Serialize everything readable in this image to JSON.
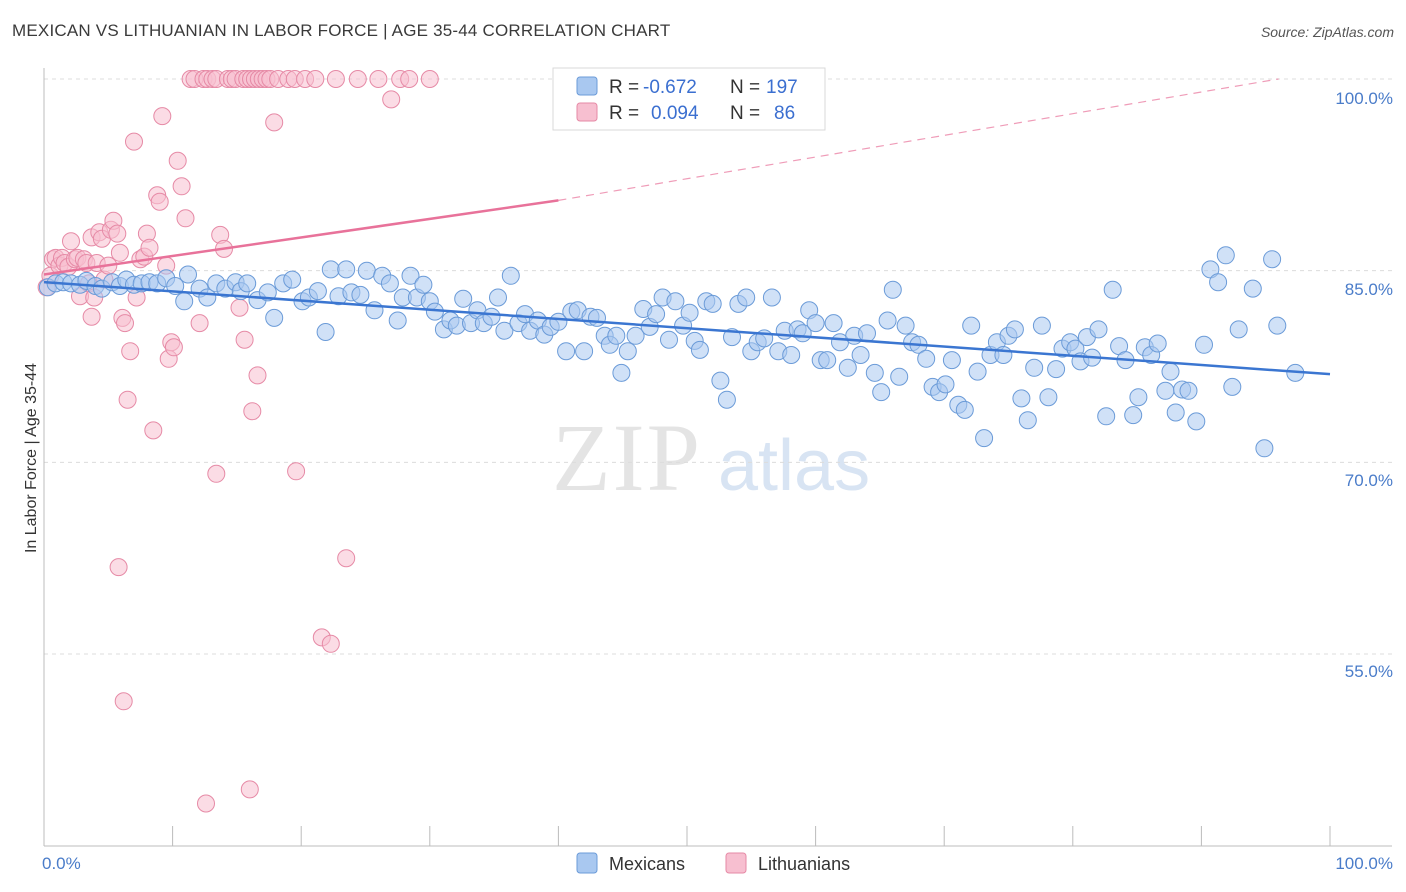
{
  "title": "MEXICAN VS LITHUANIAN IN LABOR FORCE | AGE 35-44 CORRELATION CHART",
  "source": "Source: ZipAtlas.com",
  "watermark": {
    "zip": "ZIP",
    "atlas": "atlas"
  },
  "legend": {
    "r_label": "R =",
    "n_label": "N =",
    "rows": [
      {
        "r": "-0.672",
        "n": "197",
        "color": "#a9c8f0",
        "stroke": "#6b9bd8"
      },
      {
        "r": "0.094",
        "n": "86",
        "color": "#f7bfd0",
        "stroke": "#e68aa6"
      }
    ]
  },
  "bottom_legend": [
    {
      "label": "Mexicans",
      "color": "#a9c8f0",
      "stroke": "#6b9bd8"
    },
    {
      "label": "Lithuanians",
      "color": "#f7bfd0",
      "stroke": "#e68aa6"
    }
  ],
  "chart_data": {
    "type": "scatter",
    "xlabel": "",
    "ylabel": "In Labor Force | Age 35-44",
    "xlim": [
      0,
      100
    ],
    "ylim": [
      40,
      100
    ],
    "x_tick_labels": [
      "0.0%",
      "100.0%"
    ],
    "y_ticks": [
      55,
      70,
      85,
      100
    ],
    "y_tick_labels": [
      "55.0%",
      "70.0%",
      "85.0%",
      "100.0%"
    ],
    "grid": true,
    "colors": {
      "mexicans": "#3b76d1",
      "lithuanians": "#e8729a"
    },
    "series": [
      {
        "name": "Mexicans",
        "trend": {
          "x": [
            0,
            100
          ],
          "y": [
            84.1,
            76.9
          ]
        },
        "points": [
          [
            0.3,
            83.7
          ],
          [
            0.9,
            84.0
          ],
          [
            1.5,
            84.1
          ],
          [
            2.1,
            84.0
          ],
          [
            2.8,
            83.9
          ],
          [
            3.3,
            84.2
          ],
          [
            4.0,
            83.8
          ],
          [
            4.5,
            83.6
          ],
          [
            5.3,
            84.1
          ],
          [
            5.9,
            83.8
          ],
          [
            6.4,
            84.3
          ],
          [
            7.0,
            83.9
          ],
          [
            7.6,
            84.0
          ],
          [
            8.2,
            84.1
          ],
          [
            8.8,
            84.0
          ],
          [
            9.5,
            84.4
          ],
          [
            10.2,
            83.8
          ],
          [
            10.9,
            82.6
          ],
          [
            11.2,
            84.7
          ],
          [
            12.1,
            83.6
          ],
          [
            12.7,
            82.9
          ],
          [
            13.4,
            84.0
          ],
          [
            14.1,
            83.6
          ],
          [
            14.9,
            84.1
          ],
          [
            15.3,
            83.4
          ],
          [
            15.8,
            84.0
          ],
          [
            16.6,
            82.7
          ],
          [
            17.4,
            83.3
          ],
          [
            17.9,
            81.3
          ],
          [
            18.6,
            84.0
          ],
          [
            19.3,
            84.3
          ],
          [
            20.1,
            82.6
          ],
          [
            20.6,
            82.9
          ],
          [
            21.3,
            83.4
          ],
          [
            21.9,
            80.2
          ],
          [
            22.3,
            85.1
          ],
          [
            22.9,
            83.0
          ],
          [
            23.5,
            85.1
          ],
          [
            23.9,
            83.3
          ],
          [
            24.6,
            83.1
          ],
          [
            25.1,
            85.0
          ],
          [
            25.7,
            81.9
          ],
          [
            26.3,
            84.6
          ],
          [
            26.9,
            84.0
          ],
          [
            27.5,
            81.1
          ],
          [
            27.9,
            82.9
          ],
          [
            28.5,
            84.6
          ],
          [
            29.0,
            82.9
          ],
          [
            29.5,
            83.9
          ],
          [
            30.0,
            82.6
          ],
          [
            30.4,
            81.8
          ],
          [
            31.1,
            80.4
          ],
          [
            31.6,
            81.1
          ],
          [
            32.1,
            80.7
          ],
          [
            32.6,
            82.8
          ],
          [
            33.2,
            80.9
          ],
          [
            33.7,
            81.9
          ],
          [
            34.2,
            80.9
          ],
          [
            34.8,
            81.4
          ],
          [
            35.3,
            82.9
          ],
          [
            35.8,
            80.3
          ],
          [
            36.3,
            84.6
          ],
          [
            36.9,
            80.9
          ],
          [
            37.4,
            81.6
          ],
          [
            37.8,
            80.3
          ],
          [
            38.4,
            81.1
          ],
          [
            38.9,
            80.0
          ],
          [
            39.4,
            80.6
          ],
          [
            40.0,
            81.0
          ],
          [
            40.6,
            78.7
          ],
          [
            41.0,
            81.8
          ],
          [
            41.5,
            81.9
          ],
          [
            42.0,
            78.7
          ],
          [
            42.5,
            81.4
          ],
          [
            43.0,
            81.3
          ],
          [
            43.6,
            79.9
          ],
          [
            44.0,
            79.2
          ],
          [
            44.5,
            79.9
          ],
          [
            44.9,
            77.0
          ],
          [
            45.4,
            78.7
          ],
          [
            46.0,
            79.9
          ],
          [
            46.6,
            82.0
          ],
          [
            47.1,
            80.6
          ],
          [
            47.6,
            81.6
          ],
          [
            48.1,
            82.9
          ],
          [
            48.6,
            79.6
          ],
          [
            49.1,
            82.6
          ],
          [
            49.7,
            80.7
          ],
          [
            50.2,
            81.7
          ],
          [
            50.6,
            79.5
          ],
          [
            51.0,
            78.8
          ],
          [
            51.5,
            82.6
          ],
          [
            52.0,
            82.4
          ],
          [
            52.6,
            76.4
          ],
          [
            53.1,
            74.9
          ],
          [
            53.5,
            79.8
          ],
          [
            54.0,
            82.4
          ],
          [
            54.6,
            82.9
          ],
          [
            55.0,
            78.7
          ],
          [
            55.5,
            79.4
          ],
          [
            56.0,
            79.7
          ],
          [
            56.6,
            82.9
          ],
          [
            57.1,
            78.7
          ],
          [
            57.6,
            80.3
          ],
          [
            58.1,
            78.4
          ],
          [
            58.6,
            80.4
          ],
          [
            59.0,
            80.1
          ],
          [
            59.5,
            81.9
          ],
          [
            60.0,
            80.9
          ],
          [
            60.4,
            78.0
          ],
          [
            60.9,
            78.0
          ],
          [
            61.4,
            80.9
          ],
          [
            61.9,
            79.4
          ],
          [
            62.5,
            77.4
          ],
          [
            63.0,
            79.9
          ],
          [
            63.5,
            78.4
          ],
          [
            64.0,
            80.1
          ],
          [
            64.6,
            77.0
          ],
          [
            65.1,
            75.5
          ],
          [
            65.6,
            81.1
          ],
          [
            66.0,
            83.5
          ],
          [
            66.5,
            76.7
          ],
          [
            67.0,
            80.7
          ],
          [
            67.5,
            79.4
          ],
          [
            68.0,
            79.2
          ],
          [
            68.6,
            78.1
          ],
          [
            69.1,
            75.9
          ],
          [
            69.6,
            75.5
          ],
          [
            70.1,
            76.1
          ],
          [
            70.6,
            78.0
          ],
          [
            71.1,
            74.5
          ],
          [
            71.6,
            74.1
          ],
          [
            72.1,
            80.7
          ],
          [
            72.6,
            77.1
          ],
          [
            73.1,
            71.9
          ],
          [
            73.6,
            78.4
          ],
          [
            74.1,
            79.4
          ],
          [
            74.6,
            78.4
          ],
          [
            75.0,
            79.9
          ],
          [
            75.5,
            80.4
          ],
          [
            76.0,
            75.0
          ],
          [
            76.5,
            73.3
          ],
          [
            77.0,
            77.4
          ],
          [
            77.6,
            80.7
          ],
          [
            78.1,
            75.1
          ],
          [
            78.7,
            77.3
          ],
          [
            79.2,
            78.9
          ],
          [
            79.8,
            79.4
          ],
          [
            80.2,
            78.9
          ],
          [
            80.6,
            77.9
          ],
          [
            81.1,
            79.8
          ],
          [
            81.5,
            78.2
          ],
          [
            82.0,
            80.4
          ],
          [
            82.6,
            73.6
          ],
          [
            83.1,
            83.5
          ],
          [
            83.6,
            79.1
          ],
          [
            84.1,
            78.0
          ],
          [
            84.7,
            73.7
          ],
          [
            85.1,
            75.1
          ],
          [
            85.6,
            79.0
          ],
          [
            86.1,
            78.4
          ],
          [
            86.6,
            79.3
          ],
          [
            87.2,
            75.6
          ],
          [
            87.6,
            77.1
          ],
          [
            88.0,
            73.9
          ],
          [
            88.5,
            75.7
          ],
          [
            89.0,
            75.6
          ],
          [
            89.6,
            73.2
          ],
          [
            90.2,
            79.2
          ],
          [
            90.7,
            85.1
          ],
          [
            91.3,
            84.1
          ],
          [
            91.9,
            86.2
          ],
          [
            92.4,
            75.9
          ],
          [
            92.9,
            80.4
          ],
          [
            94.0,
            83.6
          ],
          [
            94.9,
            71.1
          ],
          [
            95.5,
            85.9
          ],
          [
            95.9,
            80.7
          ],
          [
            97.3,
            77.0
          ]
        ]
      },
      {
        "name": "Lithuanians",
        "trend": {
          "x": [
            0,
            40
          ],
          "y": [
            84.7,
            90.5
          ]
        },
        "trend_dashed": {
          "x": [
            40,
            96
          ],
          "y": [
            90.5,
            100.0
          ]
        },
        "points": [
          [
            0.2,
            83.7
          ],
          [
            0.5,
            84.6
          ],
          [
            0.7,
            85.9
          ],
          [
            0.9,
            86.0
          ],
          [
            1.2,
            85.4
          ],
          [
            1.4,
            86.0
          ],
          [
            1.6,
            85.6
          ],
          [
            1.9,
            85.3
          ],
          [
            2.1,
            87.3
          ],
          [
            2.4,
            85.9
          ],
          [
            2.6,
            86.0
          ],
          [
            2.8,
            83.0
          ],
          [
            3.1,
            85.9
          ],
          [
            3.3,
            85.6
          ],
          [
            3.5,
            84.0
          ],
          [
            3.7,
            87.6
          ],
          [
            3.9,
            82.9
          ],
          [
            4.1,
            85.6
          ],
          [
            4.3,
            88.0
          ],
          [
            4.5,
            87.5
          ],
          [
            4.7,
            84.3
          ],
          [
            5.0,
            85.4
          ],
          [
            5.2,
            88.2
          ],
          [
            5.4,
            88.9
          ],
          [
            5.7,
            87.9
          ],
          [
            5.9,
            86.4
          ],
          [
            6.1,
            81.3
          ],
          [
            6.3,
            80.9
          ],
          [
            6.5,
            74.9
          ],
          [
            6.7,
            78.7
          ],
          [
            7.0,
            95.1
          ],
          [
            7.2,
            82.9
          ],
          [
            7.5,
            85.9
          ],
          [
            7.8,
            86.1
          ],
          [
            8.0,
            87.9
          ],
          [
            8.2,
            86.8
          ],
          [
            8.5,
            72.5
          ],
          [
            8.8,
            90.9
          ],
          [
            9.0,
            90.4
          ],
          [
            9.2,
            97.1
          ],
          [
            9.5,
            85.4
          ],
          [
            9.7,
            78.1
          ],
          [
            9.9,
            79.4
          ],
          [
            10.1,
            79.0
          ],
          [
            10.4,
            93.6
          ],
          [
            10.7,
            91.6
          ],
          [
            11.0,
            89.1
          ],
          [
            11.4,
            100.0
          ],
          [
            11.7,
            100.0
          ],
          [
            12.1,
            80.9
          ],
          [
            12.4,
            100.0
          ],
          [
            12.7,
            100.0
          ],
          [
            13.1,
            100.0
          ],
          [
            13.4,
            100.0
          ],
          [
            13.7,
            87.8
          ],
          [
            14.0,
            86.7
          ],
          [
            14.3,
            100.0
          ],
          [
            14.6,
            100.0
          ],
          [
            14.9,
            100.0
          ],
          [
            15.2,
            82.1
          ],
          [
            15.5,
            100.0
          ],
          [
            15.8,
            100.0
          ],
          [
            16.1,
            100.0
          ],
          [
            16.4,
            100.0
          ],
          [
            16.7,
            100.0
          ],
          [
            17.0,
            100.0
          ],
          [
            17.3,
            100.0
          ],
          [
            17.6,
            100.0
          ],
          [
            17.9,
            96.6
          ],
          [
            18.2,
            100.0
          ],
          [
            19.0,
            100.0
          ],
          [
            19.5,
            100.0
          ],
          [
            20.3,
            100.0
          ],
          [
            21.1,
            100.0
          ],
          [
            21.6,
            56.3
          ],
          [
            22.3,
            55.8
          ],
          [
            22.7,
            100.0
          ],
          [
            23.5,
            62.5
          ],
          [
            24.4,
            100.0
          ],
          [
            26.0,
            100.0
          ],
          [
            27.0,
            98.4
          ],
          [
            27.7,
            100.0
          ],
          [
            28.4,
            100.0
          ],
          [
            30.0,
            100.0
          ],
          [
            12.6,
            43.3
          ],
          [
            16.0,
            44.4
          ],
          [
            6.2,
            51.3
          ],
          [
            5.8,
            61.8
          ],
          [
            13.4,
            69.1
          ],
          [
            15.6,
            79.6
          ],
          [
            16.2,
            74.0
          ],
          [
            16.6,
            76.8
          ],
          [
            19.6,
            69.3
          ],
          [
            3.7,
            81.4
          ]
        ]
      }
    ]
  }
}
